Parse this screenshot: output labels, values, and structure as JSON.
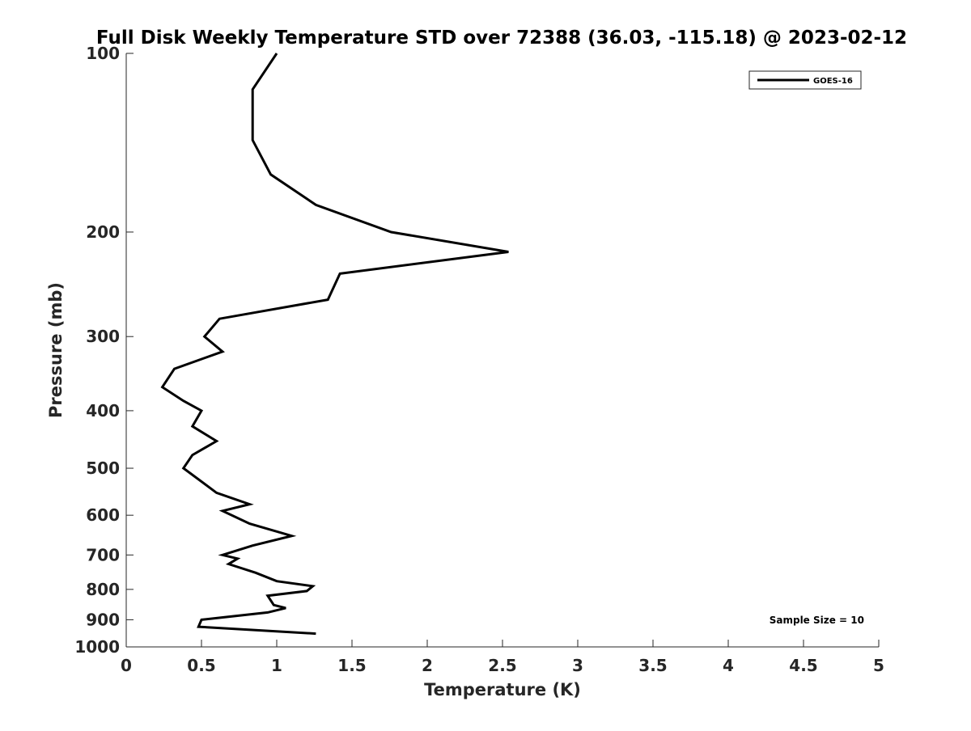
{
  "chart_data": {
    "type": "line",
    "title": "Full Disk Weekly Temperature STD over 72388 (36.03, -115.18) @ 2023-02-12",
    "xlabel": "Temperature (K)",
    "ylabel": "Pressure (mb)",
    "xlim": [
      0,
      5
    ],
    "ylim": [
      1000,
      100
    ],
    "yscale": "log",
    "y_reversed": true,
    "x_ticks": [
      "0",
      "0.5",
      "1",
      "1.5",
      "2",
      "2.5",
      "3",
      "3.5",
      "4",
      "4.5",
      "5"
    ],
    "y_ticks": [
      "100",
      "200",
      "300",
      "400",
      "500",
      "600",
      "700",
      "800",
      "900",
      "1000"
    ],
    "grid": false,
    "legend": {
      "position": "top-right",
      "entries": [
        "GOES-16"
      ]
    },
    "annotation": "Sample Size = 10",
    "series": [
      {
        "name": "GOES-16",
        "color": "#000000",
        "x": [
          1.0,
          0.84,
          0.84,
          0.84,
          0.96,
          1.26,
          1.76,
          2.54,
          1.42,
          1.34,
          0.62,
          0.52,
          0.64,
          0.32,
          0.24,
          0.38,
          0.5,
          0.44,
          0.6,
          0.44,
          0.38,
          0.6,
          0.82,
          0.64,
          0.82,
          1.1,
          0.84,
          0.64,
          0.74,
          0.68,
          0.86,
          1.0,
          1.24,
          1.2,
          0.94,
          0.98,
          1.06,
          0.94,
          0.5,
          0.48,
          1.26
        ],
        "y": [
          100,
          115,
          130,
          140,
          160,
          180,
          200,
          216,
          235,
          260,
          280,
          300,
          318,
          340,
          365,
          385,
          400,
          425,
          450,
          475,
          500,
          550,
          575,
          590,
          620,
          650,
          675,
          700,
          710,
          725,
          750,
          775,
          790,
          805,
          820,
          850,
          860,
          875,
          900,
          925,
          950
        ]
      }
    ]
  }
}
